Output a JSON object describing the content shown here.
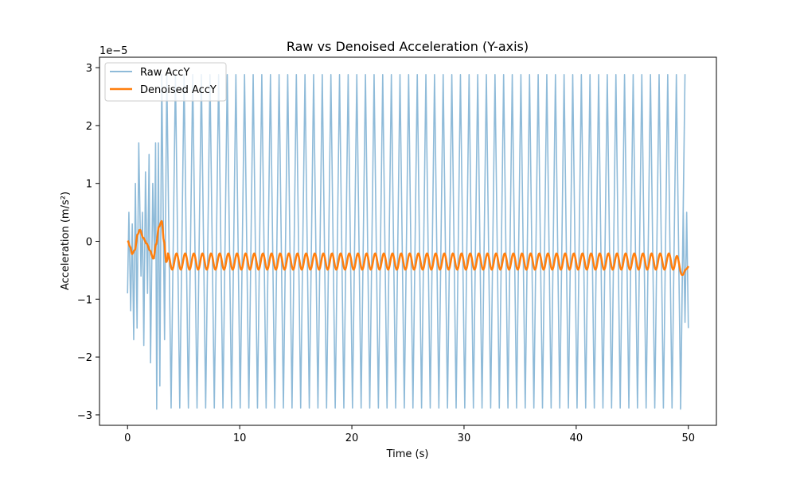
{
  "chart_data": {
    "type": "line",
    "title": "Raw vs Denoised Acceleration (Y-axis)",
    "xlabel": "Time (s)",
    "ylabel": "Acceleration (m/s²)",
    "y_offset_label": "1e−5",
    "y_scale_factor": 1e-05,
    "xlim": [
      -2.5,
      52.5
    ],
    "ylim": [
      -3.18e-05,
      3.18e-05
    ],
    "x_ticks": [
      0,
      10,
      20,
      30,
      40,
      50
    ],
    "x_tick_labels": [
      "0",
      "10",
      "20",
      "30",
      "40",
      "50"
    ],
    "y_ticks": [
      -3e-05,
      -2e-05,
      -1e-05,
      0,
      1e-05,
      2e-05,
      3e-05
    ],
    "y_tick_labels": [
      "−3",
      "−2",
      "−1",
      "0",
      "1",
      "2",
      "3"
    ],
    "grid": false,
    "legend_position": "upper-left",
    "series": [
      {
        "name": "Raw AccY",
        "color": "#1f77b4",
        "opacity": 0.5,
        "kind": "periodic-oscillation",
        "amplitude": 2.88e-05,
        "period_s": 0.77,
        "x_range": [
          0,
          50
        ]
      },
      {
        "name": "Denoised AccY",
        "color": "#ff7f0e",
        "opacity": 1.0,
        "kind": "smoothed-oscillation",
        "mean": -3.5e-06,
        "amplitude": 1.4e-06,
        "period_s": 0.77,
        "x_range": [
          0,
          50
        ]
      }
    ]
  }
}
